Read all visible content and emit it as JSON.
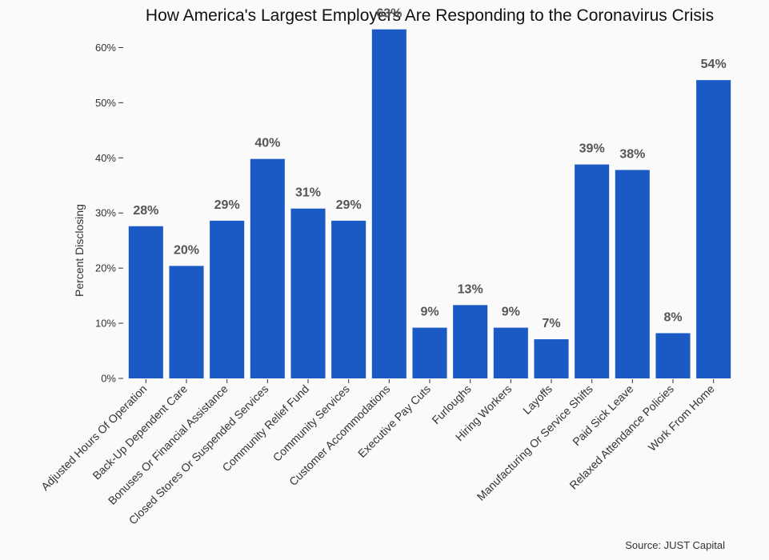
{
  "chart_data": {
    "type": "bar",
    "title": "How America's Largest Employers Are Responding to the Coronavirus Crisis",
    "xlabel": "",
    "ylabel": "Percent Disclosing",
    "ylim": [
      0,
      65
    ],
    "yticks": [
      0,
      10,
      20,
      30,
      40,
      50,
      60
    ],
    "ytick_labels": [
      "0%",
      "10%",
      "20%",
      "30%",
      "40%",
      "50%",
      "60%"
    ],
    "categories": [
      "Adjusted Hours Of Operation",
      "Back-Up Dependent Care",
      "Bonuses Or Financial Assistance",
      "Closed Stores Or Suspended Services",
      "Community Relief Fund",
      "Community Services",
      "Customer Accommodations",
      "Executive Pay Cuts",
      "Furloughs",
      "Hiring Workers",
      "Layoffs",
      "Manufacturing Or Service Shifts",
      "Paid Sick Leave",
      "Relaxed Attendance Policies",
      "Work From Home"
    ],
    "values": [
      27.6,
      20.4,
      28.6,
      39.8,
      30.8,
      28.6,
      63.3,
      9.2,
      13.3,
      9.2,
      7.1,
      38.8,
      37.8,
      8.2,
      54.1
    ],
    "data_labels": [
      "28%",
      "20%",
      "29%",
      "40%",
      "31%",
      "29%",
      "63%",
      "9%",
      "13%",
      "9%",
      "7%",
      "39%",
      "38%",
      "8%",
      "54%"
    ],
    "bar_color": "#1b5ac4",
    "grid": false,
    "legend": "none"
  },
  "source": "Source: JUST Capital"
}
